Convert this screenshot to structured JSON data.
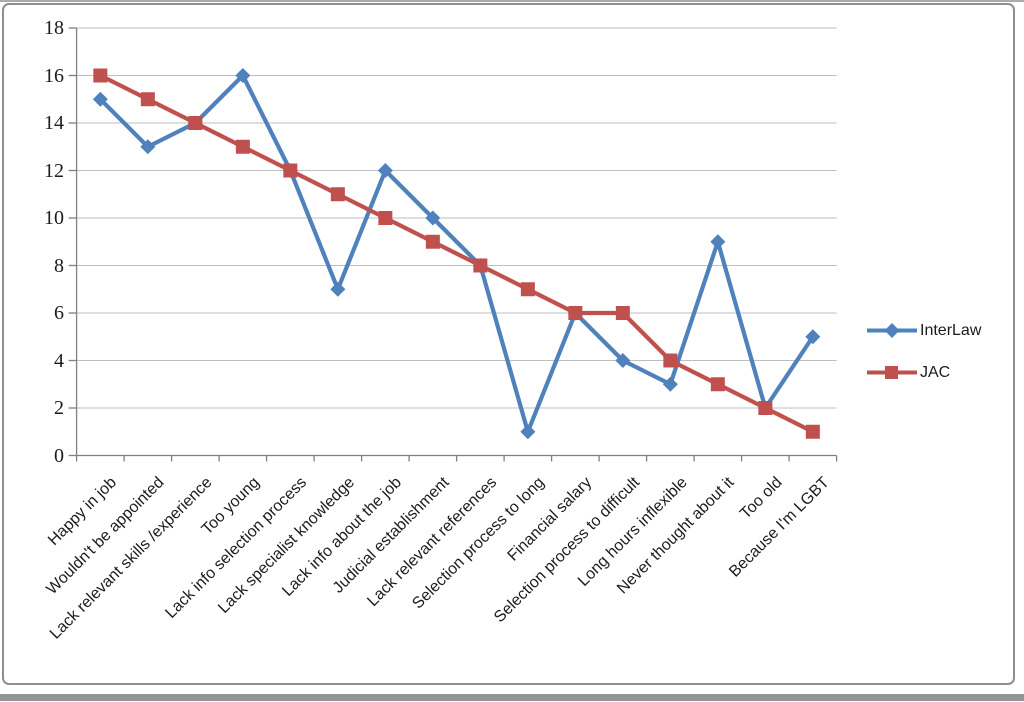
{
  "chart_data": {
    "type": "line",
    "title": "",
    "xlabel": "",
    "ylabel": "",
    "categories": [
      "Happy in job",
      "Wouldn't be appointed",
      "Lack relevant skills /experience",
      "Too young",
      "Lack  info selection process",
      "Lack specialist knowledge",
      "Lack info about the job",
      "Judicial establishment",
      "Lack relevant references",
      "Selection process to long",
      "Financial salary",
      "Selection process to difficult",
      "Long hours inflexible",
      "Never thought about it",
      "Too old",
      "Because I'm LGBT"
    ],
    "series": [
      {
        "name": "InterLaw",
        "color": "#4F81BD",
        "marker": "diamond",
        "values": [
          15,
          13,
          14,
          16,
          12,
          7,
          12,
          10,
          8,
          1,
          6,
          4,
          3,
          9,
          2,
          5
        ]
      },
      {
        "name": "JAC",
        "color": "#C0504D",
        "marker": "square",
        "values": [
          16,
          15,
          14,
          13,
          12,
          11,
          10,
          9,
          8,
          7,
          6,
          6,
          4,
          3,
          2,
          1
        ]
      }
    ],
    "ylim": [
      0,
      18
    ],
    "yticks": [
      0,
      2,
      4,
      6,
      8,
      10,
      12,
      14,
      16,
      18
    ],
    "grid": true,
    "legend_position": "right"
  },
  "colors": {
    "gridline": "#BFBFBF",
    "axis": "#808080",
    "text": "#1C1C1C",
    "frame_border": "#8F8F8F",
    "background": "#FFFFFF"
  }
}
